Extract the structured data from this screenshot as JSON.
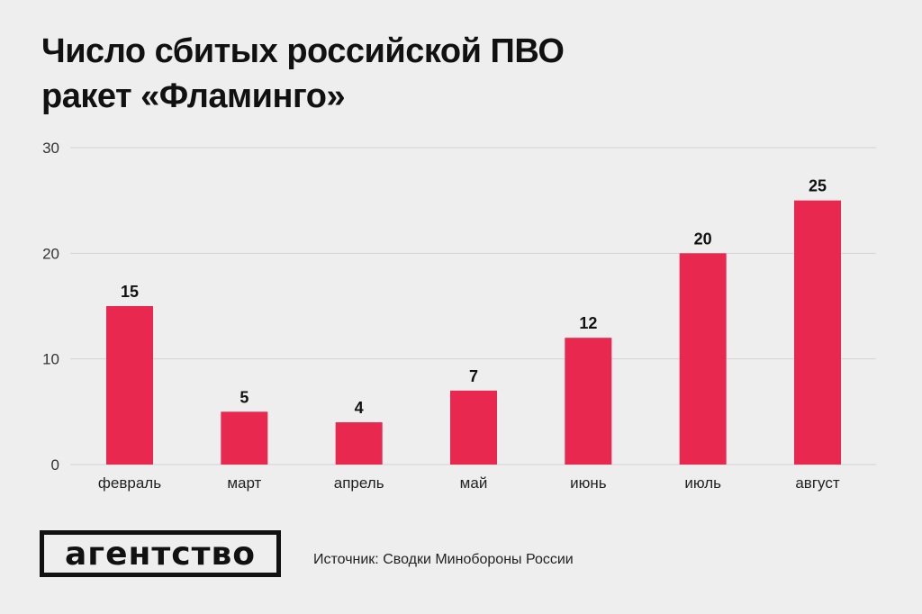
{
  "title": {
    "line1": "Число сбитых российской ПВО",
    "line2": "ракет «Фламинго»"
  },
  "chart_data": {
    "type": "bar",
    "title": "Число сбитых российской ПВО ракет «Фламинго»",
    "categories": [
      "февраль",
      "март",
      "апрель",
      "май",
      "июнь",
      "июль",
      "август"
    ],
    "values": [
      15,
      5,
      4,
      7,
      12,
      20,
      25
    ],
    "data_labels": [
      "15",
      "5",
      "4",
      "7",
      "12",
      "20",
      "25"
    ],
    "ylim": [
      0,
      30
    ],
    "yticks": [
      0,
      10,
      20,
      30
    ],
    "ytick_labels": [
      "0",
      "10",
      "20",
      "30"
    ],
    "xlabel": "",
    "ylabel": "",
    "grid": true,
    "legend": "none",
    "bar_color": "#e8284f"
  },
  "footer": {
    "logo": "агентство",
    "source": "Источник: Сводки Минобороны России"
  },
  "colors": {
    "background": "#efeeee",
    "bar": "#e8284f",
    "grid": "#d2d2d2",
    "text": "#111111"
  }
}
